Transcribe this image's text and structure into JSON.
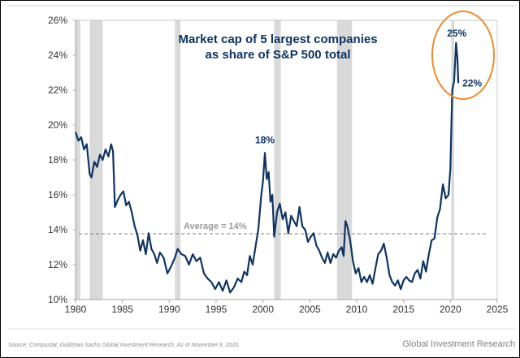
{
  "chart_data": {
    "type": "line",
    "title_lines": [
      "Market cap of 5 largest companies",
      "as share of S&P 500 total"
    ],
    "xlabel": "",
    "ylabel": "",
    "xlim": [
      1980,
      2025
    ],
    "ylim": [
      10,
      26
    ],
    "x_ticks": [
      1980,
      1985,
      1990,
      1995,
      2000,
      2005,
      2010,
      2015,
      2020,
      2025
    ],
    "x_tick_labels": [
      "1980",
      "1985",
      "1990",
      "1995",
      "2000",
      "2005",
      "2010",
      "2015",
      "2020",
      "2025"
    ],
    "y_ticks": [
      10,
      12,
      14,
      16,
      18,
      20,
      22,
      24,
      26
    ],
    "y_tick_labels": [
      "10%",
      "12%",
      "14%",
      "16%",
      "18%",
      "20%",
      "22%",
      "24%",
      "26%"
    ],
    "grid": false,
    "legend": "none",
    "series": [
      {
        "name": "Top 5 share of S&P 500 market cap (%)",
        "color": "#0f3462",
        "x": [
          1980.0,
          1980.3,
          1980.6,
          1980.9,
          1981.2,
          1981.5,
          1981.7,
          1982.0,
          1982.3,
          1982.6,
          1982.9,
          1983.2,
          1983.5,
          1983.8,
          1984.0,
          1984.2,
          1984.5,
          1984.8,
          1985.1,
          1985.4,
          1985.7,
          1986.0,
          1986.3,
          1986.6,
          1986.9,
          1987.2,
          1987.5,
          1987.8,
          1988.1,
          1988.4,
          1988.7,
          1989.0,
          1989.4,
          1989.8,
          1990.2,
          1990.6,
          1990.9,
          1991.3,
          1991.7,
          1992.1,
          1992.5,
          1992.9,
          1993.3,
          1993.7,
          1994.1,
          1994.5,
          1994.9,
          1995.3,
          1995.7,
          1996.1,
          1996.5,
          1996.9,
          1997.3,
          1997.7,
          1998.0,
          1998.3,
          1998.6,
          1998.9,
          1999.2,
          1999.5,
          1999.8,
          2000.0,
          2000.2,
          2000.4,
          2000.6,
          2000.8,
          2001.0,
          2001.2,
          2001.5,
          2001.8,
          2002.1,
          2002.4,
          2002.7,
          2003.0,
          2003.3,
          2003.6,
          2003.9,
          2004.2,
          2004.5,
          2004.8,
          2005.1,
          2005.4,
          2005.7,
          2006.0,
          2006.3,
          2006.6,
          2006.9,
          2007.2,
          2007.5,
          2007.8,
          2008.1,
          2008.4,
          2008.6,
          2008.8,
          2009.0,
          2009.3,
          2009.6,
          2009.9,
          2010.2,
          2010.5,
          2010.8,
          2011.1,
          2011.4,
          2011.7,
          2012.0,
          2012.3,
          2012.6,
          2012.9,
          2013.2,
          2013.5,
          2013.8,
          2014.1,
          2014.4,
          2014.7,
          2015.0,
          2015.3,
          2015.6,
          2015.9,
          2016.2,
          2016.5,
          2016.8,
          2017.1,
          2017.4,
          2017.7,
          2018.0,
          2018.3,
          2018.6,
          2018.9,
          2019.2,
          2019.5,
          2019.8,
          2020.0,
          2020.2,
          2020.4,
          2020.6,
          2020.75,
          2020.85
        ],
        "y": [
          19.6,
          19.1,
          19.3,
          18.6,
          18.9,
          17.2,
          17.0,
          17.9,
          17.6,
          18.3,
          18.0,
          18.6,
          18.2,
          18.9,
          18.5,
          15.3,
          15.7,
          16.0,
          16.2,
          15.4,
          15.6,
          15.0,
          14.2,
          13.7,
          12.8,
          13.4,
          12.6,
          13.8,
          12.9,
          12.6,
          12.1,
          12.7,
          12.4,
          11.5,
          11.9,
          12.4,
          12.9,
          12.6,
          12.5,
          12.0,
          12.6,
          12.2,
          12.4,
          11.5,
          11.2,
          11.0,
          10.6,
          11.0,
          10.5,
          11.1,
          10.4,
          10.7,
          11.2,
          11.0,
          11.6,
          11.4,
          12.5,
          12.0,
          13.0,
          14.0,
          15.9,
          16.8,
          18.4,
          16.9,
          17.3,
          15.6,
          16.0,
          13.6,
          15.0,
          15.5,
          14.6,
          15.0,
          13.8,
          14.8,
          14.5,
          14.2,
          15.3,
          14.2,
          14.0,
          13.3,
          13.6,
          13.8,
          13.1,
          12.8,
          12.4,
          12.1,
          12.7,
          12.1,
          12.6,
          12.4,
          12.8,
          13.0,
          12.5,
          14.5,
          14.2,
          13.4,
          12.2,
          11.5,
          11.8,
          11.0,
          11.3,
          11.0,
          11.4,
          10.9,
          11.8,
          12.6,
          12.8,
          13.2,
          12.4,
          11.4,
          11.0,
          10.8,
          11.1,
          10.6,
          11.1,
          11.3,
          11.1,
          11.0,
          11.5,
          11.7,
          11.2,
          12.2,
          11.6,
          12.6,
          13.4,
          13.5,
          14.7,
          15.2,
          16.6,
          15.8,
          16.0,
          17.5,
          22.0,
          22.5,
          24.7,
          23.8,
          22.4
        ]
      }
    ],
    "reference_lines": [
      {
        "type": "horizontal",
        "value": 13.77,
        "style": "dashed",
        "color": "#808080",
        "label": "Average = 14%"
      }
    ],
    "shaded_regions": [
      {
        "label": "recession",
        "x": [
          1980.0,
          1980.5
        ]
      },
      {
        "label": "recession",
        "x": [
          1981.5,
          1982.9
        ]
      },
      {
        "label": "recession",
        "x": [
          1990.6,
          1991.2
        ]
      },
      {
        "label": "recession",
        "x": [
          2001.2,
          2001.9
        ]
      },
      {
        "label": "recession",
        "x": [
          2007.9,
          2009.5
        ]
      },
      {
        "label": "recession",
        "x": [
          2020.1,
          2020.4
        ]
      }
    ],
    "annotations": [
      {
        "text": "18%",
        "x": 2000.2,
        "y": 18.4
      },
      {
        "text": "25%",
        "x": 2020.6,
        "y": 24.7
      },
      {
        "text": "22%",
        "x": 2020.85,
        "y": 22.4
      }
    ],
    "highlight": {
      "shape": "ellipse",
      "color": "#ef8a2c",
      "around": "2020 peak"
    }
  },
  "footer": {
    "source": "Source: Compustat, Goldman Sachs Global Investment Research. As of November 9, 2020.",
    "brand": "Global Investment Research"
  }
}
